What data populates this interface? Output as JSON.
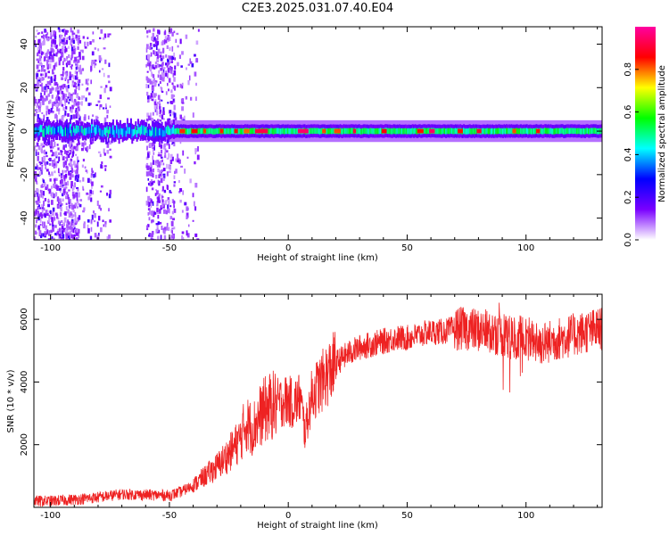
{
  "title": "C2E3.2025.031.07.40.E04",
  "chart_data": [
    {
      "type": "heatmap",
      "name": "spectrogram",
      "xlabel": "Height of straight line (km)",
      "ylabel": "Frequency (Hz)",
      "xlim": [
        -107,
        132
      ],
      "ylim": [
        -50,
        48
      ],
      "xticks": [
        -100,
        -50,
        0,
        50,
        100
      ],
      "xtick_labels": [
        "-100",
        "-50",
        "0",
        "50",
        "100"
      ],
      "yticks": [
        -40,
        -20,
        0,
        20,
        40
      ],
      "ytick_labels": [
        "-40",
        "-20",
        "0",
        "20",
        "40"
      ],
      "band_center_hz": 0,
      "band_halfwidth_hz": 3,
      "colorbar": {
        "label": "Normalized spectral amplitude",
        "range": [
          0.0,
          1.0
        ],
        "ticks": [
          0.0,
          0.2,
          0.4,
          0.6,
          0.8
        ],
        "tick_labels": [
          "0.0",
          "0.2",
          "0.4",
          "0.6",
          "0.8"
        ],
        "colors": [
          "#ffffff",
          "#7a00ff",
          "#0000ff",
          "#00ffff",
          "#00ff00",
          "#ffff00",
          "#ff0000",
          "#ff00a0"
        ]
      }
    },
    {
      "type": "line",
      "name": "snr",
      "xlabel": "Height of straight line (km)",
      "ylabel": "SNR (10 * v/v)",
      "xlim": [
        -107,
        132
      ],
      "ylim": [
        0,
        6800
      ],
      "xticks": [
        -100,
        -50,
        0,
        50,
        100
      ],
      "xtick_labels": [
        "-100",
        "-50",
        "0",
        "50",
        "100"
      ],
      "yticks": [
        2000,
        4000,
        6000
      ],
      "ytick_labels": [
        "2000",
        "4000",
        "6000"
      ],
      "color": "#ee2222",
      "series": [
        {
          "name": "SNR",
          "x": [
            -107,
            -100,
            -90,
            -80,
            -70,
            -60,
            -50,
            -45,
            -40,
            -35,
            -30,
            -25,
            -20,
            -18,
            -15,
            -12,
            -10,
            -8,
            -5,
            -2,
            0,
            2,
            5,
            7,
            10,
            12,
            15,
            20,
            25,
            30,
            35,
            40,
            45,
            50,
            55,
            60,
            65,
            70,
            75,
            80,
            85,
            90,
            95,
            100,
            105,
            110,
            115,
            120,
            125,
            132
          ],
          "y": [
            200,
            200,
            250,
            320,
            420,
            400,
            380,
            500,
            700,
            1000,
            1300,
            1700,
            2200,
            2700,
            2500,
            2900,
            3100,
            3200,
            3300,
            3400,
            3400,
            3300,
            3500,
            2400,
            3600,
            3800,
            4100,
            4600,
            4900,
            5100,
            5200,
            5300,
            5400,
            5400,
            5500,
            5600,
            5600,
            5700,
            5700,
            5650,
            5600,
            5500,
            5400,
            5500,
            5200,
            5300,
            5400,
            5500,
            5600,
            5700
          ]
        }
      ]
    }
  ]
}
